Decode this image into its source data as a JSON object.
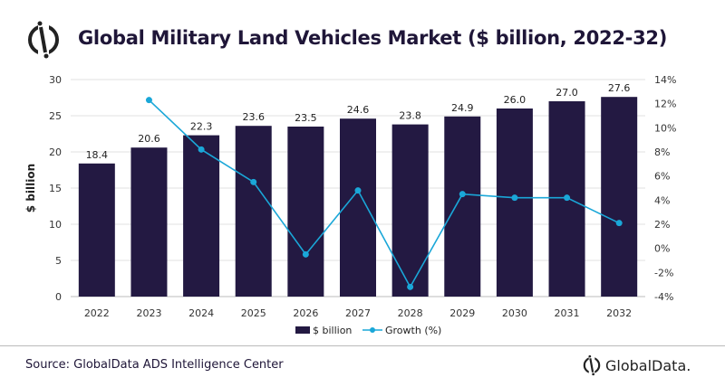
{
  "title": "Global Military Land Vehicles Market ($ billion, 2022-32)",
  "source": "Source: GlobalData ADS Intelligence Center",
  "brand": "GlobalData.",
  "colors": {
    "bar": "#231942",
    "line": "#1aa7d8",
    "title": "#1f1638"
  },
  "chart_data": {
    "type": "bar+line",
    "title": "Global Military Land Vehicles Market ($ billion, 2022-32)",
    "categories": [
      "2022",
      "2023",
      "2024",
      "2025",
      "2026",
      "2027",
      "2028",
      "2029",
      "2030",
      "2031",
      "2032"
    ],
    "series": [
      {
        "name": "$ billion",
        "type": "bar",
        "axis": "left",
        "values": [
          18.4,
          20.6,
          22.3,
          23.6,
          23.5,
          24.6,
          23.8,
          24.9,
          26.0,
          27.0,
          27.6
        ]
      },
      {
        "name": "Growth (%)",
        "type": "line",
        "axis": "right",
        "values": [
          null,
          12.3,
          8.2,
          5.5,
          -0.5,
          4.8,
          -3.2,
          4.5,
          4.2,
          4.2,
          2.1
        ]
      }
    ],
    "ylabel": "$ billion",
    "ylim": [
      0,
      30
    ],
    "yticks": [
      0,
      5,
      10,
      15,
      20,
      25,
      30
    ],
    "y2lim": [
      -4,
      14
    ],
    "y2ticks": [
      "-4%",
      "-2%",
      "0%",
      "2%",
      "4%",
      "6%",
      "8%",
      "10%",
      "12%",
      "14%"
    ],
    "grid": "horizontal",
    "legend": "bottom"
  }
}
